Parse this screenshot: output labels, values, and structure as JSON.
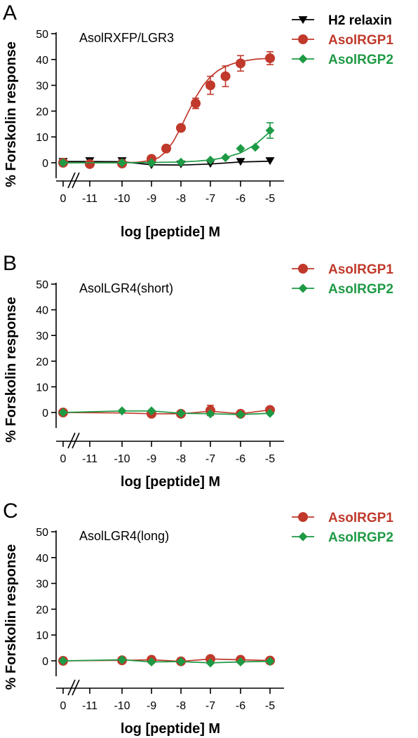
{
  "colors": {
    "h2_relaxin": "#000000",
    "AsolRGP1": "#c0392b",
    "AsolRGP2": "#1e9a45"
  },
  "chart_data": [
    {
      "type": "line",
      "panel": "A",
      "title": "AsolRXFP/LGR3",
      "xlabel": "log [peptide] M",
      "ylabel": "% Forskolin response",
      "ylim": [
        0,
        50
      ],
      "yticks": [
        "0",
        "10",
        "20",
        "30",
        "40",
        "50"
      ],
      "xticks": [
        "0",
        "-11",
        "-10",
        "-9",
        "-8",
        "-7",
        "-6",
        "-5"
      ],
      "x_axis_break": "between 0 and -11",
      "legend": "top-right",
      "series": [
        {
          "name": "H2 relaxin",
          "marker": "triangle-down",
          "color": "#000000",
          "points": [
            {
              "x": 0,
              "y": 0.5
            },
            {
              "x": -11,
              "y": 0.8
            },
            {
              "x": -10,
              "y": 0.8
            },
            {
              "x": -9,
              "y": -0.8
            },
            {
              "x": -8,
              "y": -0.5
            },
            {
              "x": -7,
              "y": -0.3
            },
            {
              "x": -6,
              "y": 0.5
            },
            {
              "x": -5,
              "y": 0.8
            }
          ],
          "curve": [
            [
              0,
              0.5
            ],
            [
              -11,
              0.5
            ],
            [
              -10,
              0.4
            ],
            [
              -9,
              -0.8
            ],
            [
              -8,
              -0.9
            ],
            [
              -7,
              -0.5
            ],
            [
              -6,
              0.3
            ],
            [
              -5,
              0.6
            ]
          ]
        },
        {
          "name": "AsolRGP1",
          "marker": "circle",
          "color": "#c0392b",
          "points": [
            {
              "x": 0,
              "y": 0
            },
            {
              "x": -11,
              "y": -0.5
            },
            {
              "x": -10,
              "y": -0.3
            },
            {
              "x": -9,
              "y": 1.5
            },
            {
              "x": -8.5,
              "y": 5.5
            },
            {
              "x": -8,
              "y": 13.5
            },
            {
              "x": -7.5,
              "y": 23,
              "err": 2
            },
            {
              "x": -7,
              "y": 30,
              "err": 3.5
            },
            {
              "x": -6.5,
              "y": 33.5,
              "err": 4
            },
            {
              "x": -6,
              "y": 38.5,
              "err": 3
            },
            {
              "x": -5,
              "y": 40.5,
              "err": 2.5
            }
          ],
          "curve": [
            [
              0,
              0
            ],
            [
              -11,
              0
            ],
            [
              -10,
              0
            ],
            [
              -9.5,
              0.2
            ],
            [
              -9,
              0.9
            ],
            [
              -8.75,
              2
            ],
            [
              -8.5,
              4.4
            ],
            [
              -8.25,
              8.4
            ],
            [
              -8,
              13.8
            ],
            [
              -7.75,
              19.7
            ],
            [
              -7.5,
              25.3
            ],
            [
              -7.25,
              29.9
            ],
            [
              -7,
              33.3
            ],
            [
              -6.75,
              35.7
            ],
            [
              -6.5,
              37.3
            ],
            [
              -6.25,
              38.4
            ],
            [
              -6,
              39.2
            ],
            [
              -5.5,
              40.1
            ],
            [
              -5,
              40.5
            ]
          ]
        },
        {
          "name": "AsolRGP2",
          "marker": "diamond",
          "color": "#1e9a45",
          "points": [
            {
              "x": 0,
              "y": 0
            },
            {
              "x": -10,
              "y": 0
            },
            {
              "x": -9,
              "y": 0
            },
            {
              "x": -8,
              "y": 0.2
            },
            {
              "x": -7,
              "y": 1
            },
            {
              "x": -6.5,
              "y": 2
            },
            {
              "x": -6,
              "y": 5.5
            },
            {
              "x": -5.5,
              "y": 6
            },
            {
              "x": -5,
              "y": 12.5,
              "err": 3
            }
          ],
          "curve": [
            [
              0,
              0
            ],
            [
              -10,
              0
            ],
            [
              -9,
              0.1
            ],
            [
              -8,
              0.3
            ],
            [
              -7.5,
              0.6
            ],
            [
              -7,
              1.1
            ],
            [
              -6.5,
              2
            ],
            [
              -6,
              3.8
            ],
            [
              -5.5,
              7
            ],
            [
              -5,
              12
            ]
          ]
        }
      ]
    },
    {
      "type": "line",
      "panel": "B",
      "title": "AsolLGR4(short)",
      "xlabel": "log [peptide] M",
      "ylabel": "% Forskolin response",
      "ylim": [
        0,
        50
      ],
      "yticks": [
        "0",
        "10",
        "20",
        "30",
        "40",
        "50"
      ],
      "xticks": [
        "0",
        "-11",
        "-10",
        "-9",
        "-8",
        "-7",
        "-6",
        "-5"
      ],
      "x_axis_break": "between 0 and -11",
      "legend": "top-right",
      "series": [
        {
          "name": "AsolRGP1",
          "marker": "circle",
          "color": "#c0392b",
          "points": [
            {
              "x": 0,
              "y": 0
            },
            {
              "x": -9,
              "y": -0.5
            },
            {
              "x": -8,
              "y": -0.5
            },
            {
              "x": -7,
              "y": 0.8,
              "err": 2
            },
            {
              "x": -6,
              "y": -0.5
            },
            {
              "x": -5,
              "y": 1
            }
          ],
          "curve": [
            [
              0,
              0
            ],
            [
              -10,
              -0.2
            ],
            [
              -9,
              -0.5
            ],
            [
              -8,
              -0.5
            ],
            [
              -7,
              0.5
            ],
            [
              -6,
              -0.5
            ],
            [
              -5,
              1
            ]
          ]
        },
        {
          "name": "AsolRGP2",
          "marker": "diamond",
          "color": "#1e9a45",
          "points": [
            {
              "x": 0,
              "y": 0
            },
            {
              "x": -10,
              "y": 0.6
            },
            {
              "x": -9,
              "y": 0.6
            },
            {
              "x": -8,
              "y": -0.3
            },
            {
              "x": -7,
              "y": -0.5
            },
            {
              "x": -6,
              "y": -0.8
            },
            {
              "x": -5,
              "y": -0.3
            }
          ],
          "curve": [
            [
              0,
              0
            ],
            [
              -10,
              0.6
            ],
            [
              -9,
              0.6
            ],
            [
              -8,
              -0.3
            ],
            [
              -7,
              -0.5
            ],
            [
              -6,
              -0.8
            ],
            [
              -5,
              -0.3
            ]
          ]
        }
      ]
    },
    {
      "type": "line",
      "panel": "C",
      "title": "AsolLGR4(long)",
      "xlabel": "log [peptide] M",
      "ylabel": "% Forskolin response",
      "ylim": [
        0,
        50
      ],
      "yticks": [
        "0",
        "10",
        "20",
        "30",
        "40",
        "50"
      ],
      "xticks": [
        "0",
        "-11",
        "-10",
        "-9",
        "-8",
        "-7",
        "-6",
        "-5"
      ],
      "x_axis_break": "between 0 and -11",
      "legend": "top-right",
      "series": [
        {
          "name": "AsolRGP1",
          "marker": "circle",
          "color": "#c0392b",
          "points": [
            {
              "x": 0,
              "y": 0
            },
            {
              "x": -10,
              "y": 0.2
            },
            {
              "x": -9,
              "y": 0.4
            },
            {
              "x": -8,
              "y": -0.2
            },
            {
              "x": -7,
              "y": 0.7
            },
            {
              "x": -6,
              "y": 0.4
            },
            {
              "x": -5,
              "y": 0.1
            }
          ],
          "curve": [
            [
              0,
              0
            ],
            [
              -10,
              0.2
            ],
            [
              -9,
              0.4
            ],
            [
              -8,
              -0.2
            ],
            [
              -7,
              0.7
            ],
            [
              -6,
              0.4
            ],
            [
              -5,
              0.1
            ]
          ]
        },
        {
          "name": "AsolRGP2",
          "marker": "diamond",
          "color": "#1e9a45",
          "points": [
            {
              "x": 0,
              "y": 0
            },
            {
              "x": -10,
              "y": 0.4
            },
            {
              "x": -9,
              "y": -0.4
            },
            {
              "x": -8,
              "y": -0.3
            },
            {
              "x": -7,
              "y": -0.8
            },
            {
              "x": -6,
              "y": -0.4
            },
            {
              "x": -5,
              "y": -0.2
            }
          ],
          "curve": [
            [
              0,
              0
            ],
            [
              -10,
              0.4
            ],
            [
              -9,
              -0.4
            ],
            [
              -8,
              -0.3
            ],
            [
              -7,
              -0.8
            ],
            [
              -6,
              -0.4
            ],
            [
              -5,
              -0.2
            ]
          ]
        }
      ]
    }
  ]
}
